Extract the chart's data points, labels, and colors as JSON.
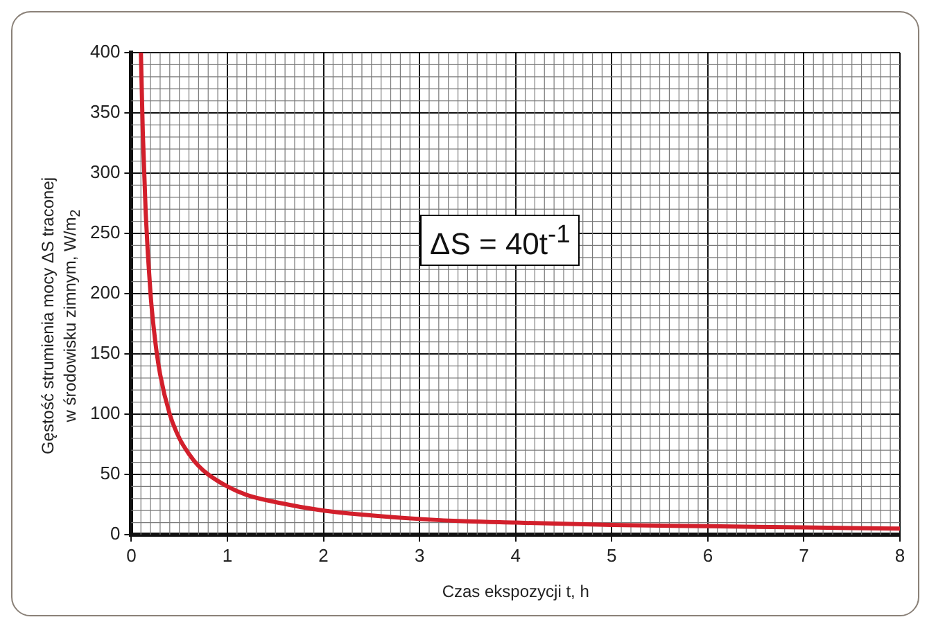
{
  "chart_data": {
    "type": "line",
    "xlabel": "Czas ekspozycji t, h",
    "ylabel": "Gęstość strumienia mocy ΔS traconej\nw środowisku zimnym, W/m$_{2}$",
    "annotations": [
      "ΔS = 40t$^{-1}$"
    ],
    "series": [
      {
        "color": "#d21f2b",
        "x": [
          0.1,
          0.12,
          0.15,
          0.2,
          0.25,
          0.3,
          0.4,
          0.5,
          0.6,
          0.7,
          0.8,
          1,
          1.2,
          1.5,
          2,
          2.5,
          3,
          3.5,
          4,
          5,
          6,
          7,
          8
        ],
        "values": [
          400,
          333,
          267,
          200,
          160,
          133,
          100,
          80,
          67,
          57,
          50,
          40,
          33,
          27,
          20,
          16,
          13,
          11,
          10,
          8,
          7,
          6,
          5
        ]
      }
    ],
    "xlim": [
      0,
      8
    ],
    "xticks": [
      0,
      1,
      2,
      3,
      4,
      5,
      6,
      7,
      8
    ],
    "ylim": [
      0,
      400
    ],
    "yticks": [
      0,
      50,
      100,
      150,
      200,
      250,
      300,
      350,
      400
    ],
    "grid": true,
    "legend": false,
    "marker": "none",
    "line_style": "solid"
  }
}
